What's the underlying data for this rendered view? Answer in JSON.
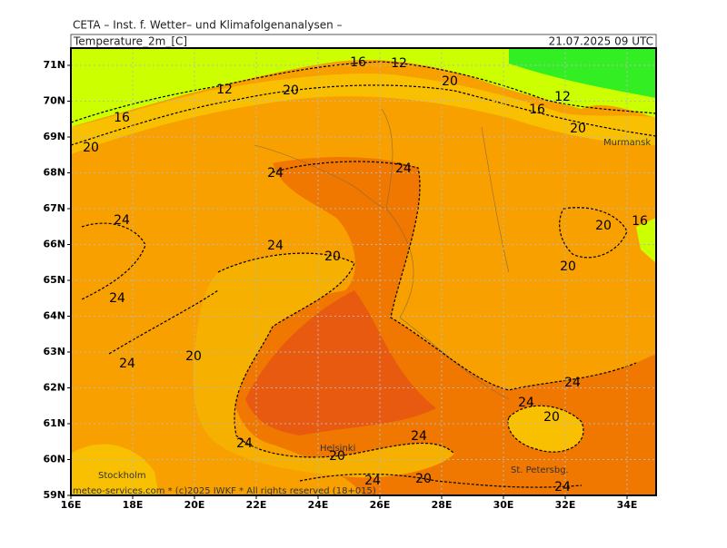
{
  "header": {
    "title": "CETA – Inst. f. Wetter– und Klimafolgenanalysen –",
    "field": "Temperature_2m_[C]",
    "valid_time": "21.07.2025 09 UTC"
  },
  "axes": {
    "lat_labels": [
      "71N",
      "70N",
      "69N",
      "68N",
      "67N",
      "66N",
      "65N",
      "64N",
      "63N",
      "62N",
      "61N",
      "60N",
      "59N"
    ],
    "lon_labels": [
      "16E",
      "18E",
      "20E",
      "22E",
      "24E",
      "26E",
      "28E",
      "30E",
      "32E",
      "34E"
    ]
  },
  "places": [
    "Murmansk",
    "Stockholm",
    "Helsinki",
    "St. Petersbg."
  ],
  "contour_labels": [
    16,
    12,
    12,
    20,
    20,
    12,
    16,
    20,
    16,
    20,
    24,
    24,
    24,
    20,
    16,
    24,
    20,
    20,
    24,
    20,
    24,
    24,
    24,
    20,
    24,
    24,
    20,
    24,
    20,
    24
  ],
  "footer": "meteo-services.com * (c)2025 IWKF * All rights reserved (18+015)"
}
